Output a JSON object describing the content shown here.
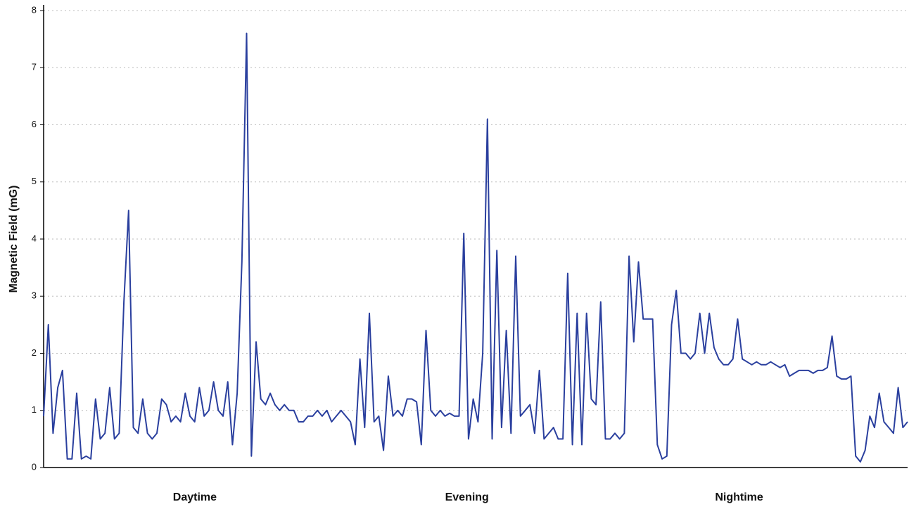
{
  "chart_data": {
    "type": "line",
    "y_label": "Magnetic Field (mG)",
    "annotations": [
      "Daytime",
      "Evening",
      "Nightime"
    ],
    "color": "#2a3f9e",
    "ylim": [
      0,
      8
    ],
    "yticks": [
      0,
      1,
      2,
      3,
      4,
      5,
      6,
      7,
      8
    ],
    "grid": true,
    "values": [
      0.9,
      2.5,
      0.6,
      1.4,
      1.7,
      0.15,
      0.15,
      1.3,
      0.15,
      0.2,
      0.15,
      1.2,
      0.5,
      0.6,
      1.4,
      0.5,
      0.6,
      2.9,
      4.5,
      0.7,
      0.6,
      1.2,
      0.6,
      0.5,
      0.6,
      1.2,
      1.1,
      0.8,
      0.9,
      0.8,
      1.3,
      0.9,
      0.8,
      1.4,
      0.9,
      1.0,
      1.5,
      1.0,
      0.9,
      1.5,
      0.4,
      1.3,
      3.6,
      7.6,
      0.2,
      2.2,
      1.2,
      1.1,
      1.3,
      1.1,
      1.0,
      1.1,
      1.0,
      1.0,
      0.8,
      0.8,
      0.9,
      0.9,
      1.0,
      0.9,
      1.0,
      0.8,
      0.9,
      1.0,
      0.9,
      0.8,
      0.4,
      1.9,
      0.7,
      2.7,
      0.8,
      0.9,
      0.3,
      1.6,
      0.9,
      1.0,
      0.9,
      1.2,
      1.2,
      1.15,
      0.4,
      2.4,
      1.0,
      0.9,
      1.0,
      0.9,
      0.95,
      0.9,
      0.9,
      4.1,
      0.5,
      1.2,
      0.8,
      2.0,
      6.1,
      0.5,
      3.8,
      0.7,
      2.4,
      0.6,
      3.7,
      0.9,
      1.0,
      1.1,
      0.6,
      1.7,
      0.5,
      0.6,
      0.7,
      0.5,
      0.5,
      3.4,
      0.4,
      2.7,
      0.4,
      2.7,
      1.2,
      1.1,
      2.9,
      0.5,
      0.5,
      0.6,
      0.5,
      0.6,
      3.7,
      2.2,
      3.6,
      2.6,
      2.6,
      2.6,
      0.4,
      0.15,
      0.2,
      2.5,
      3.1,
      2.0,
      2.0,
      1.9,
      2.0,
      2.7,
      2.0,
      2.7,
      2.1,
      1.9,
      1.8,
      1.8,
      1.9,
      2.6,
      1.9,
      1.85,
      1.8,
      1.85,
      1.8,
      1.8,
      1.85,
      1.8,
      1.75,
      1.8,
      1.6,
      1.65,
      1.7,
      1.7,
      1.7,
      1.65,
      1.7,
      1.7,
      1.75,
      2.3,
      1.6,
      1.55,
      1.55,
      1.6,
      0.2,
      0.1,
      0.3,
      0.9,
      0.7,
      1.3,
      0.8,
      0.7,
      0.6,
      1.4,
      0.7,
      0.8
    ]
  }
}
